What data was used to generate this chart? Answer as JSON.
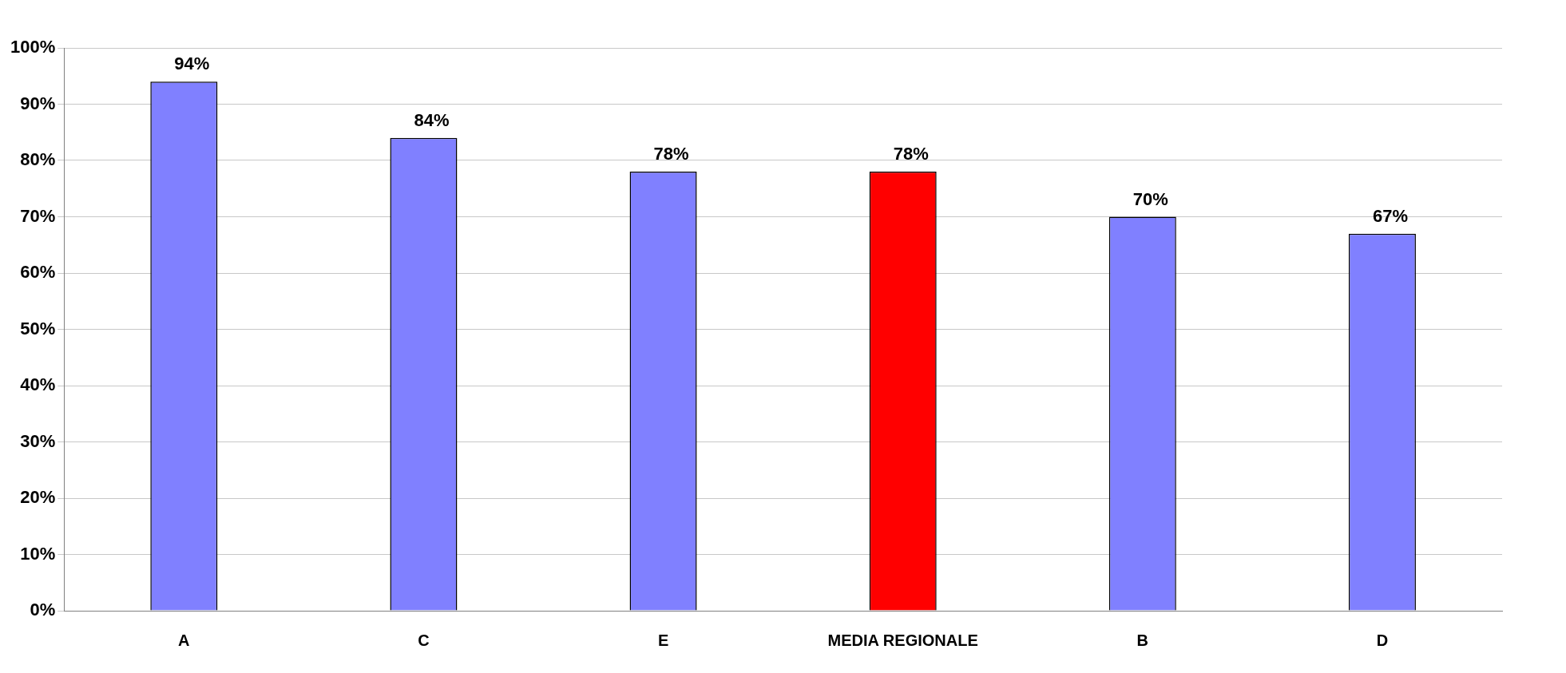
{
  "chart_data": {
    "type": "bar",
    "categories": [
      "A",
      "C",
      "E",
      "MEDIA REGIONALE",
      "B",
      "D"
    ],
    "values": [
      94,
      84,
      78,
      78,
      70,
      67
    ],
    "colors": [
      "#8080ff",
      "#8080ff",
      "#8080ff",
      "#ff0000",
      "#8080ff",
      "#8080ff"
    ],
    "value_labels": [
      "94%",
      "84%",
      "78%",
      "78%",
      "70%",
      "67%"
    ],
    "ylim": [
      0,
      100
    ],
    "yticks": [
      {
        "value": 0,
        "label": "0%"
      },
      {
        "value": 10,
        "label": "10%"
      },
      {
        "value": 20,
        "label": "20%"
      },
      {
        "value": 30,
        "label": "30%"
      },
      {
        "value": 40,
        "label": "40%"
      },
      {
        "value": 50,
        "label": "50%"
      },
      {
        "value": 60,
        "label": "60%"
      },
      {
        "value": 70,
        "label": "70%"
      },
      {
        "value": 80,
        "label": "80%"
      },
      {
        "value": 90,
        "label": "90%"
      },
      {
        "value": 100,
        "label": "100%"
      }
    ],
    "grid": "y",
    "legend": false
  }
}
